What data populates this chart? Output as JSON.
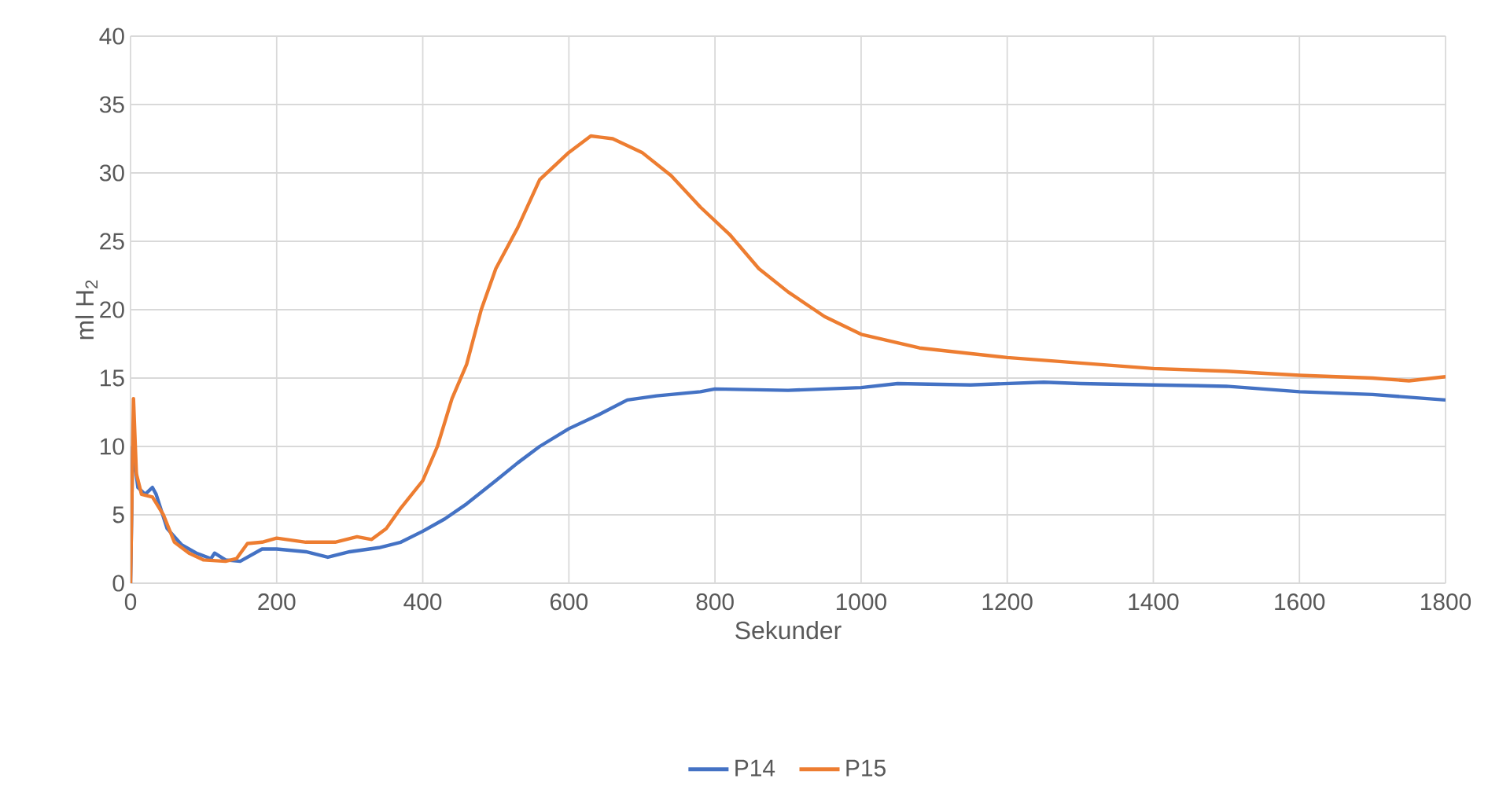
{
  "chart_data": {
    "type": "line",
    "xlabel": "Sekunder",
    "ylabel": "ml H$_{2}$",
    "xlim": [
      0,
      1800
    ],
    "ylim": [
      0,
      40
    ],
    "xticks": [
      0,
      200,
      400,
      600,
      800,
      1000,
      1200,
      1400,
      1600,
      1800
    ],
    "yticks": [
      0,
      5,
      10,
      15,
      20,
      25,
      30,
      35,
      40
    ],
    "grid": true,
    "legend": "bottom",
    "marker": "none",
    "line_style": "solid",
    "series": [
      {
        "name": "P14",
        "color": "#4472c4",
        "x": [
          0,
          3,
          10,
          20,
          30,
          35,
          50,
          70,
          90,
          110,
          115,
          130,
          150,
          180,
          200,
          240,
          270,
          300,
          340,
          370,
          400,
          430,
          460,
          500,
          530,
          560,
          600,
          640,
          680,
          720,
          780,
          800,
          900,
          1000,
          1050,
          1150,
          1250,
          1300,
          1400,
          1500,
          1600,
          1700,
          1800
        ],
        "values": [
          0,
          10,
          7,
          6.5,
          7,
          6.5,
          4,
          2.8,
          2.2,
          1.8,
          2.2,
          1.7,
          1.6,
          2.5,
          2.5,
          2.3,
          1.9,
          2.3,
          2.6,
          3,
          3.8,
          4.7,
          5.8,
          7.5,
          8.8,
          10,
          11.3,
          12.3,
          13.4,
          13.7,
          14,
          14.2,
          14.1,
          14.3,
          14.6,
          14.5,
          14.7,
          14.6,
          14.5,
          14.4,
          14,
          13.8,
          13.4
        ]
      },
      {
        "name": "P15",
        "color": "#ed7d31",
        "x": [
          0,
          4,
          8,
          15,
          30,
          45,
          60,
          80,
          100,
          130,
          145,
          160,
          180,
          200,
          240,
          280,
          310,
          330,
          350,
          370,
          400,
          420,
          440,
          460,
          480,
          500,
          530,
          560,
          600,
          630,
          660,
          700,
          740,
          780,
          820,
          860,
          900,
          950,
          1000,
          1080,
          1200,
          1300,
          1400,
          1500,
          1600,
          1700,
          1750,
          1800
        ],
        "values": [
          0,
          13.5,
          8,
          6.5,
          6.3,
          5,
          3,
          2.2,
          1.7,
          1.6,
          1.8,
          2.9,
          3,
          3.3,
          3,
          3,
          3.4,
          3.2,
          4,
          5.5,
          7.5,
          10,
          13.5,
          16,
          20,
          23,
          26,
          29.5,
          31.5,
          32.7,
          32.5,
          31.5,
          29.8,
          27.5,
          25.5,
          23,
          21.3,
          19.5,
          18.2,
          17.2,
          16.5,
          16.1,
          15.7,
          15.5,
          15.2,
          15,
          14.8,
          15.1
        ]
      }
    ]
  }
}
